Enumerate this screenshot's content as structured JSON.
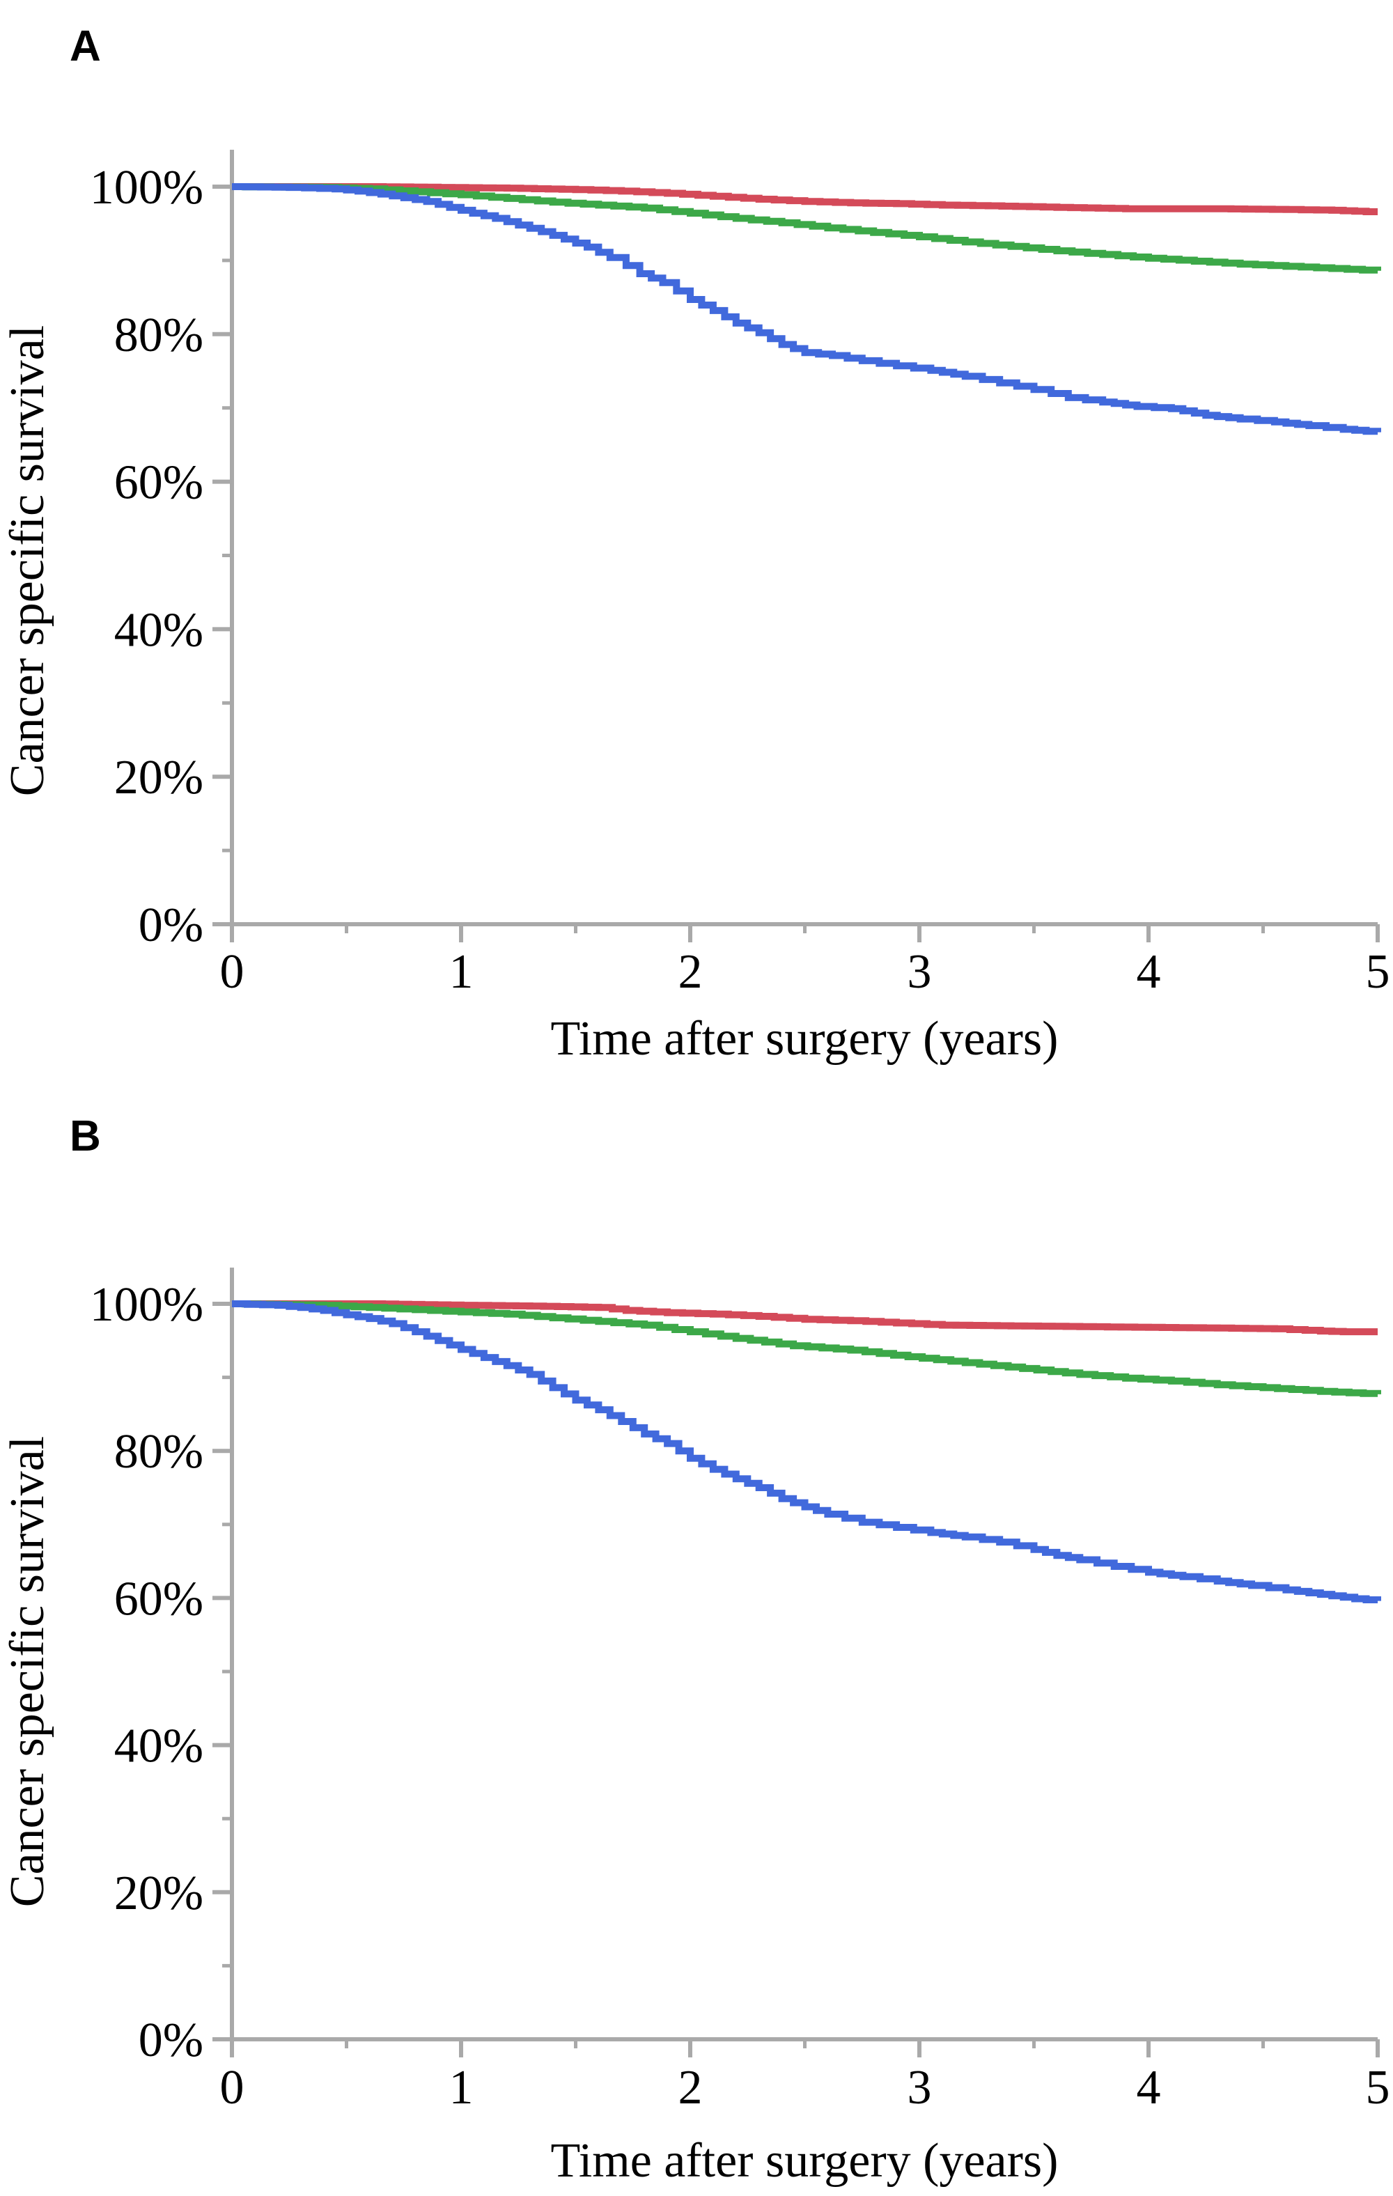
{
  "page": {
    "background": "#ffffff"
  },
  "colors": {
    "blue": "#4169DC",
    "green": "#3CA848",
    "red": "#D44A59",
    "axis": "#A9A9A9",
    "text": "#000000"
  },
  "panels": [
    {
      "label": "A",
      "y_axis": {
        "title": "Cancer specific survival",
        "tick_labels": [
          "100%",
          "80%",
          "60%",
          "40%",
          "20%",
          "0%"
        ]
      },
      "x_axis": {
        "title": "Time after surgery (years)",
        "tick_labels": [
          "0",
          "1",
          "2",
          "3",
          "4",
          "5"
        ]
      }
    },
    {
      "label": "B",
      "y_axis": {
        "title": "Cancer specific survival",
        "tick_labels": [
          "100%",
          "80%",
          "60%",
          "40%",
          "20%",
          "0%"
        ]
      },
      "x_axis": {
        "title": "Time after surgery (years)",
        "tick_labels": [
          "0",
          "1",
          "2",
          "3",
          "4",
          "5"
        ]
      }
    }
  ],
  "chart_data": [
    {
      "panel": "A",
      "type": "line",
      "subtype": "kaplan-meier-step",
      "title": "",
      "xlabel": "Time after surgery (years)",
      "ylabel": "Cancer specific survival",
      "xlim": [
        0,
        5
      ],
      "ylim": [
        0,
        100
      ],
      "y_unit": "%",
      "grid": false,
      "legend": "none",
      "x_ticks": [
        0,
        1,
        2,
        3,
        4,
        5
      ],
      "x_minor_ticks": [
        0.5,
        1.5,
        2.5,
        3.5,
        4.5
      ],
      "y_ticks_percent": [
        100,
        80,
        60,
        40,
        20,
        0
      ],
      "y_minor_ticks_percent": [
        90,
        70,
        50,
        30,
        10
      ],
      "series": [
        {
          "name": "red-line",
          "color": "red",
          "points": [
            [
              0,
              100
            ],
            [
              0.6,
              100
            ],
            [
              0.9,
              99.9
            ],
            [
              1.2,
              99.8
            ],
            [
              1.5,
              99.6
            ],
            [
              1.7,
              99.4
            ],
            [
              1.9,
              99.1
            ],
            [
              2.1,
              98.7
            ],
            [
              2.3,
              98.3
            ],
            [
              2.5,
              98.0
            ],
            [
              2.7,
              97.8
            ],
            [
              2.9,
              97.7
            ],
            [
              3.1,
              97.5
            ],
            [
              3.3,
              97.4
            ],
            [
              3.6,
              97.2
            ],
            [
              3.9,
              97.0
            ],
            [
              4.3,
              97.0
            ],
            [
              4.6,
              96.9
            ],
            [
              4.8,
              96.8
            ],
            [
              4.95,
              96.6
            ],
            [
              5.0,
              96.6
            ]
          ]
        },
        {
          "name": "green-line",
          "color": "green",
          "points": [
            [
              0,
              100
            ],
            [
              0.4,
              99.9
            ],
            [
              0.6,
              99.7
            ],
            [
              0.8,
              99.3
            ],
            [
              1.0,
              98.9
            ],
            [
              1.2,
              98.4
            ],
            [
              1.4,
              97.9
            ],
            [
              1.6,
              97.5
            ],
            [
              1.8,
              97.1
            ],
            [
              2.0,
              96.4
            ],
            [
              2.2,
              95.7
            ],
            [
              2.4,
              95.1
            ],
            [
              2.6,
              94.4
            ],
            [
              2.8,
              93.8
            ],
            [
              3.0,
              93.2
            ],
            [
              3.2,
              92.5
            ],
            [
              3.4,
              91.9
            ],
            [
              3.6,
              91.3
            ],
            [
              3.8,
              90.8
            ],
            [
              4.0,
              90.3
            ],
            [
              4.2,
              89.9
            ],
            [
              4.4,
              89.5
            ],
            [
              4.6,
              89.2
            ],
            [
              4.8,
              88.9
            ],
            [
              5.0,
              88.6
            ]
          ]
        },
        {
          "name": "blue-line",
          "color": "blue",
          "points": [
            [
              0,
              100
            ],
            [
              0.25,
              99.9
            ],
            [
              0.45,
              99.7
            ],
            [
              0.55,
              99.4
            ],
            [
              0.65,
              99.0
            ],
            [
              0.75,
              98.5
            ],
            [
              0.85,
              98.0
            ],
            [
              0.95,
              97.2
            ],
            [
              1.05,
              96.4
            ],
            [
              1.15,
              95.7
            ],
            [
              1.25,
              94.8
            ],
            [
              1.35,
              93.9
            ],
            [
              1.45,
              92.9
            ],
            [
              1.55,
              91.8
            ],
            [
              1.65,
              90.4
            ],
            [
              1.72,
              89.3
            ],
            [
              1.78,
              88.2
            ],
            [
              1.88,
              87.0
            ],
            [
              2.0,
              84.7
            ],
            [
              2.1,
              83.2
            ],
            [
              2.2,
              81.5
            ],
            [
              2.3,
              80.2
            ],
            [
              2.4,
              78.6
            ],
            [
              2.5,
              77.5
            ],
            [
              2.62,
              77.1
            ],
            [
              2.75,
              76.4
            ],
            [
              2.9,
              75.7
            ],
            [
              3.05,
              75.1
            ],
            [
              3.2,
              74.3
            ],
            [
              3.35,
              73.4
            ],
            [
              3.5,
              72.5
            ],
            [
              3.65,
              71.4
            ],
            [
              3.8,
              70.8
            ],
            [
              3.95,
              70.2
            ],
            [
              4.1,
              69.9
            ],
            [
              4.25,
              69.0
            ],
            [
              4.4,
              68.5
            ],
            [
              4.55,
              68.1
            ],
            [
              4.7,
              67.6
            ],
            [
              4.85,
              67.1
            ],
            [
              5.0,
              66.7
            ]
          ]
        }
      ]
    },
    {
      "panel": "B",
      "type": "line",
      "subtype": "kaplan-meier-step",
      "title": "",
      "xlabel": "Time after surgery (years)",
      "ylabel": "Cancer specific survival",
      "xlim": [
        0,
        5
      ],
      "ylim": [
        0,
        100
      ],
      "y_unit": "%",
      "grid": false,
      "legend": "none",
      "x_ticks": [
        0,
        1,
        2,
        3,
        4,
        5
      ],
      "x_minor_ticks": [
        0.5,
        1.5,
        2.5,
        3.5,
        4.5
      ],
      "y_ticks_percent": [
        100,
        80,
        60,
        40,
        20,
        0
      ],
      "y_minor_ticks_percent": [
        90,
        70,
        50,
        30,
        10
      ],
      "series": [
        {
          "name": "red-line",
          "color": "red",
          "points": [
            [
              0,
              100
            ],
            [
              0.6,
              100
            ],
            [
              1.0,
              99.8
            ],
            [
              1.3,
              99.7
            ],
            [
              1.6,
              99.5
            ],
            [
              1.72,
              99.1
            ],
            [
              1.9,
              98.8
            ],
            [
              2.1,
              98.6
            ],
            [
              2.3,
              98.3
            ],
            [
              2.5,
              97.9
            ],
            [
              2.7,
              97.7
            ],
            [
              2.9,
              97.4
            ],
            [
              3.1,
              97.1
            ],
            [
              3.4,
              97.0
            ],
            [
              3.7,
              96.9
            ],
            [
              4.0,
              96.8
            ],
            [
              4.3,
              96.7
            ],
            [
              4.55,
              96.6
            ],
            [
              4.75,
              96.3
            ],
            [
              4.85,
              96.2
            ],
            [
              5.0,
              96.2
            ]
          ]
        },
        {
          "name": "green-line",
          "color": "green",
          "points": [
            [
              0,
              100
            ],
            [
              0.4,
              99.8
            ],
            [
              0.6,
              99.5
            ],
            [
              0.8,
              99.2
            ],
            [
              1.0,
              98.9
            ],
            [
              1.2,
              98.6
            ],
            [
              1.4,
              98.1
            ],
            [
              1.6,
              97.6
            ],
            [
              1.8,
              97.1
            ],
            [
              2.0,
              96.2
            ],
            [
              2.2,
              95.3
            ],
            [
              2.45,
              94.3
            ],
            [
              2.7,
              93.7
            ],
            [
              2.95,
              92.8
            ],
            [
              3.2,
              92.0
            ],
            [
              3.45,
              91.2
            ],
            [
              3.7,
              90.4
            ],
            [
              3.9,
              89.9
            ],
            [
              4.1,
              89.5
            ],
            [
              4.3,
              89.0
            ],
            [
              4.5,
              88.6
            ],
            [
              4.75,
              88.1
            ],
            [
              5.0,
              87.7
            ]
          ]
        },
        {
          "name": "blue-line",
          "color": "blue",
          "points": [
            [
              0,
              100
            ],
            [
              0.2,
              99.8
            ],
            [
              0.3,
              99.5
            ],
            [
              0.4,
              99.1
            ],
            [
              0.5,
              98.5
            ],
            [
              0.6,
              98.0
            ],
            [
              0.7,
              97.3
            ],
            [
              0.8,
              96.2
            ],
            [
              0.9,
              95.0
            ],
            [
              1.0,
              93.8
            ],
            [
              1.1,
              92.7
            ],
            [
              1.2,
              91.6
            ],
            [
              1.3,
              90.4
            ],
            [
              1.4,
              88.6
            ],
            [
              1.5,
              86.9
            ],
            [
              1.6,
              85.6
            ],
            [
              1.7,
              84.0
            ],
            [
              1.8,
              82.3
            ],
            [
              1.9,
              81.0
            ],
            [
              2.0,
              79.0
            ],
            [
              2.1,
              77.5
            ],
            [
              2.2,
              76.2
            ],
            [
              2.3,
              75.0
            ],
            [
              2.4,
              73.5
            ],
            [
              2.5,
              72.4
            ],
            [
              2.6,
              71.4
            ],
            [
              2.75,
              70.3
            ],
            [
              2.9,
              69.6
            ],
            [
              3.05,
              68.9
            ],
            [
              3.2,
              68.3
            ],
            [
              3.35,
              67.6
            ],
            [
              3.5,
              66.6
            ],
            [
              3.6,
              65.8
            ],
            [
              3.7,
              65.2
            ],
            [
              3.85,
              64.3
            ],
            [
              4.0,
              63.5
            ],
            [
              4.15,
              62.9
            ],
            [
              4.3,
              62.3
            ],
            [
              4.45,
              61.7
            ],
            [
              4.6,
              61.1
            ],
            [
              4.75,
              60.5
            ],
            [
              4.9,
              59.9
            ],
            [
              5.0,
              59.6
            ]
          ]
        }
      ]
    }
  ]
}
